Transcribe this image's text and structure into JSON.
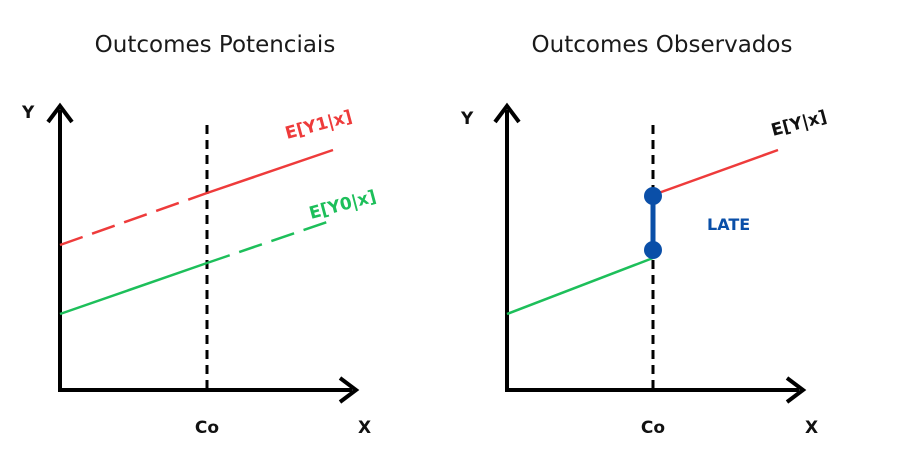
{
  "colors": {
    "axis": "#000000",
    "treated": "#ee3b3b",
    "control": "#1dbf5a",
    "late": "#0a4fa8",
    "observed_label": "#111111"
  },
  "left_panel": {
    "title": "Outcomes Potenciais",
    "y_label": "Y",
    "x_label": "X",
    "cutoff_label": "Co",
    "treated_curve_label": "E[Y1|x]",
    "control_curve_label": "E[Y0|x]"
  },
  "right_panel": {
    "title": "Outcomes Observados",
    "y_label": "Y",
    "x_label": "X",
    "cutoff_label": "Co",
    "observed_curve_label": "E[Y|x]",
    "effect_label": "LATE"
  }
}
